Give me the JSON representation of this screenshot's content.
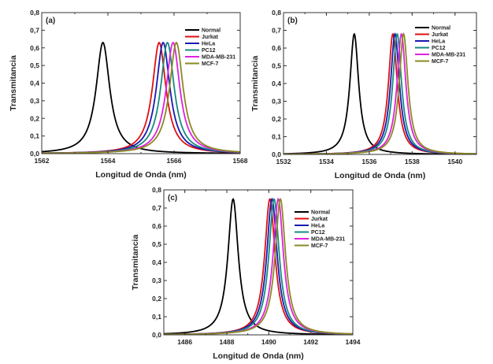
{
  "chart_data": [
    {
      "type": "line",
      "panel_label": "(a)",
      "xlabel": "Longitud de Onda (nm)",
      "ylabel": "Transmitancia",
      "xlim": [
        1562,
        1568
      ],
      "ylim": [
        0,
        0.8
      ],
      "xticks": [
        "1562",
        "1564",
        "1566",
        "1568"
      ],
      "xtick_values": [
        1562,
        1564,
        1566,
        1568
      ],
      "yticks": [
        "0,0",
        "0,1",
        "0,2",
        "0,3",
        "0,4",
        "0,5",
        "0,6",
        "0,7",
        "0,8"
      ],
      "ytick_values": [
        0,
        0.1,
        0.2,
        0.3,
        0.4,
        0.5,
        0.6,
        0.7,
        0.8
      ],
      "legend_position": "top-right",
      "series": [
        {
          "name": "Normal",
          "color": "#000000",
          "peak_wavelength": 1563.85,
          "peak_transmittance": 0.63,
          "fwhm": 0.5
        },
        {
          "name": "Jurkat",
          "color": "#e01010",
          "peak_wavelength": 1565.55,
          "peak_transmittance": 0.63,
          "fwhm": 0.5
        },
        {
          "name": "HeLa",
          "color": "#1818b0",
          "peak_wavelength": 1565.67,
          "peak_transmittance": 0.63,
          "fwhm": 0.5
        },
        {
          "name": "PC12",
          "color": "#188a80",
          "peak_wavelength": 1565.8,
          "peak_transmittance": 0.63,
          "fwhm": 0.5
        },
        {
          "name": "MDA-MB-231",
          "color": "#e020e0",
          "peak_wavelength": 1565.97,
          "peak_transmittance": 0.63,
          "fwhm": 0.5
        },
        {
          "name": "MCF-7",
          "color": "#8a8a20",
          "peak_wavelength": 1566.07,
          "peak_transmittance": 0.63,
          "fwhm": 0.5
        }
      ]
    },
    {
      "type": "line",
      "panel_label": "(b)",
      "xlabel": "Longitud de Onda  (nm)",
      "ylabel": "Transmitancia",
      "xlim": [
        1532,
        1541
      ],
      "ylim": [
        0,
        0.8
      ],
      "xticks": [
        "1532",
        "1534",
        "1536",
        "1538",
        "1540"
      ],
      "xtick_values": [
        1532,
        1534,
        1536,
        1538,
        1540
      ],
      "yticks": [
        "0,0",
        "0,1",
        "0,2",
        "0,3",
        "0,4",
        "0,5",
        "0,6",
        "0,7",
        "0,8"
      ],
      "ytick_values": [
        0,
        0.1,
        0.2,
        0.3,
        0.4,
        0.5,
        0.6,
        0.7,
        0.8
      ],
      "legend_position": "top-right",
      "series": [
        {
          "name": "Normal",
          "color": "#000000",
          "peak_wavelength": 1535.3,
          "peak_transmittance": 0.68,
          "fwhm": 0.5
        },
        {
          "name": "Jurkat",
          "color": "#e01010",
          "peak_wavelength": 1537.1,
          "peak_transmittance": 0.68,
          "fwhm": 0.5
        },
        {
          "name": "HeLa",
          "color": "#1818b0",
          "peak_wavelength": 1537.2,
          "peak_transmittance": 0.68,
          "fwhm": 0.5
        },
        {
          "name": "PC12",
          "color": "#188a80",
          "peak_wavelength": 1537.3,
          "peak_transmittance": 0.68,
          "fwhm": 0.5
        },
        {
          "name": "MDA-MB-231",
          "color": "#e020e0",
          "peak_wavelength": 1537.5,
          "peak_transmittance": 0.68,
          "fwhm": 0.5
        },
        {
          "name": "MCF-7",
          "color": "#8a8a20",
          "peak_wavelength": 1537.6,
          "peak_transmittance": 0.68,
          "fwhm": 0.5
        }
      ]
    },
    {
      "type": "line",
      "panel_label": "(c)",
      "xlabel": "Longitud de Onda (nm)",
      "ylabel": "Transmitancia",
      "xlim": [
        1485,
        1494
      ],
      "ylim": [
        0,
        0.8
      ],
      "xticks": [
        "1486",
        "1488",
        "1490",
        "1492",
        "1494"
      ],
      "xtick_values": [
        1486,
        1488,
        1490,
        1492,
        1494
      ],
      "yticks": [
        "0,0",
        "0,1",
        "0,2",
        "0,3",
        "0,4",
        "0,5",
        "0,6",
        "0,7",
        "0,8"
      ],
      "ytick_values": [
        0,
        0.1,
        0.2,
        0.3,
        0.4,
        0.5,
        0.6,
        0.7,
        0.8
      ],
      "legend_position": "top-right",
      "series": [
        {
          "name": "Normal",
          "color": "#000000",
          "peak_wavelength": 1488.3,
          "peak_transmittance": 0.75,
          "fwhm": 0.6
        },
        {
          "name": "Jurkat",
          "color": "#e01010",
          "peak_wavelength": 1490.05,
          "peak_transmittance": 0.75,
          "fwhm": 0.6
        },
        {
          "name": "HeLa",
          "color": "#1818b0",
          "peak_wavelength": 1490.15,
          "peak_transmittance": 0.75,
          "fwhm": 0.6
        },
        {
          "name": "PC12",
          "color": "#188a80",
          "peak_wavelength": 1490.25,
          "peak_transmittance": 0.75,
          "fwhm": 0.6
        },
        {
          "name": "MDA-MB-231",
          "color": "#e020e0",
          "peak_wavelength": 1490.45,
          "peak_transmittance": 0.75,
          "fwhm": 0.6
        },
        {
          "name": "MCF-7",
          "color": "#8a8a20",
          "peak_wavelength": 1490.55,
          "peak_transmittance": 0.75,
          "fwhm": 0.6
        }
      ]
    }
  ]
}
